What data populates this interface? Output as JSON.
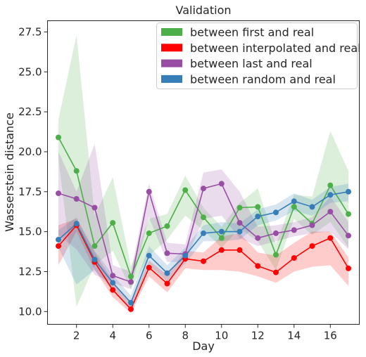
{
  "chart_data": {
    "type": "line",
    "title": "Validation",
    "xlabel": "Day",
    "ylabel": "Wasserstein distance",
    "xlim": [
      0.4,
      17.6
    ],
    "ylim": [
      9.2,
      28.2
    ],
    "x_ticks": [
      2,
      4,
      6,
      8,
      10,
      12,
      14,
      16
    ],
    "y_ticks": [
      10.0,
      12.5,
      15.0,
      17.5,
      20.0,
      22.5,
      25.0,
      27.5
    ],
    "y_tick_labels": [
      "10.0",
      "12.5",
      "15.0",
      "17.5",
      "20.0",
      "22.5",
      "25.0",
      "27.5"
    ],
    "legend_position": "top-right",
    "x": [
      1,
      2,
      3,
      4,
      5,
      6,
      7,
      8,
      9,
      10,
      11,
      12,
      13,
      14,
      15,
      16,
      17
    ],
    "series": [
      {
        "name": "between first and real",
        "color": "#4daf4a",
        "values": [
          20.9,
          18.8,
          14.1,
          15.55,
          12.2,
          14.9,
          15.35,
          17.6,
          15.9,
          14.6,
          16.5,
          16.55,
          13.55,
          16.55,
          15.5,
          17.9,
          16.1
        ],
        "lower": [
          19.6,
          10.3,
          12.9,
          13.8,
          11.4,
          13.5,
          14.5,
          16.0,
          15.1,
          14.0,
          15.2,
          14.4,
          12.6,
          15.8,
          14.8,
          15.6,
          14.0
        ],
        "upper": [
          22.0,
          27.3,
          16.0,
          18.4,
          12.8,
          15.8,
          16.1,
          18.5,
          16.5,
          15.3,
          16.8,
          17.7,
          14.2,
          17.3,
          17.2,
          21.3,
          18.8
        ]
      },
      {
        "name": "between interpolated and real",
        "color": "#ff0000",
        "values": [
          14.1,
          15.4,
          13.1,
          11.35,
          10.15,
          12.75,
          11.75,
          13.3,
          13.15,
          13.85,
          13.85,
          12.85,
          12.45,
          13.35,
          14.1,
          14.6,
          12.7
        ],
        "lower": [
          12.9,
          15.0,
          12.6,
          10.9,
          9.9,
          12.2,
          11.2,
          12.7,
          12.6,
          12.6,
          12.5,
          12.2,
          11.8,
          12.5,
          12.8,
          12.9,
          11.6
        ],
        "upper": [
          15.4,
          15.8,
          13.7,
          11.9,
          10.5,
          13.2,
          12.3,
          13.8,
          13.7,
          14.7,
          14.9,
          13.7,
          13.5,
          14.3,
          15.0,
          15.0,
          13.4
        ]
      },
      {
        "name": "between last and real",
        "color": "#984ea3",
        "values": [
          17.4,
          17.05,
          16.5,
          12.25,
          11.85,
          17.5,
          13.65,
          13.6,
          17.7,
          18.0,
          15.55,
          14.6,
          14.9,
          15.1,
          15.4,
          16.25,
          14.75
        ],
        "lower": [
          14.8,
          13.9,
          12.3,
          11.8,
          11.4,
          15.9,
          13.1,
          13.1,
          15.8,
          16.0,
          14.6,
          14.1,
          14.4,
          14.7,
          14.9,
          15.0,
          13.9
        ],
        "upper": [
          20.0,
          17.5,
          20.5,
          12.9,
          12.5,
          18.0,
          14.3,
          14.2,
          18.7,
          18.9,
          17.5,
          15.3,
          15.4,
          15.6,
          15.9,
          17.2,
          15.6
        ]
      },
      {
        "name": "between random and real",
        "color": "#377eb8",
        "values": [
          14.5,
          15.5,
          13.25,
          11.8,
          10.55,
          13.5,
          12.4,
          13.5,
          14.9,
          15.0,
          15.0,
          15.95,
          16.2,
          16.9,
          16.55,
          17.3,
          17.5
        ],
        "lower": [
          14.0,
          11.7,
          12.6,
          11.3,
          10.1,
          12.9,
          11.9,
          13.0,
          14.4,
          14.4,
          14.5,
          15.4,
          15.7,
          16.3,
          16.0,
          16.8,
          16.9
        ],
        "upper": [
          15.1,
          15.9,
          13.8,
          12.3,
          11.0,
          14.1,
          12.9,
          14.0,
          15.4,
          15.6,
          15.5,
          16.4,
          16.7,
          17.4,
          17.0,
          17.8,
          18.0
        ]
      }
    ]
  }
}
